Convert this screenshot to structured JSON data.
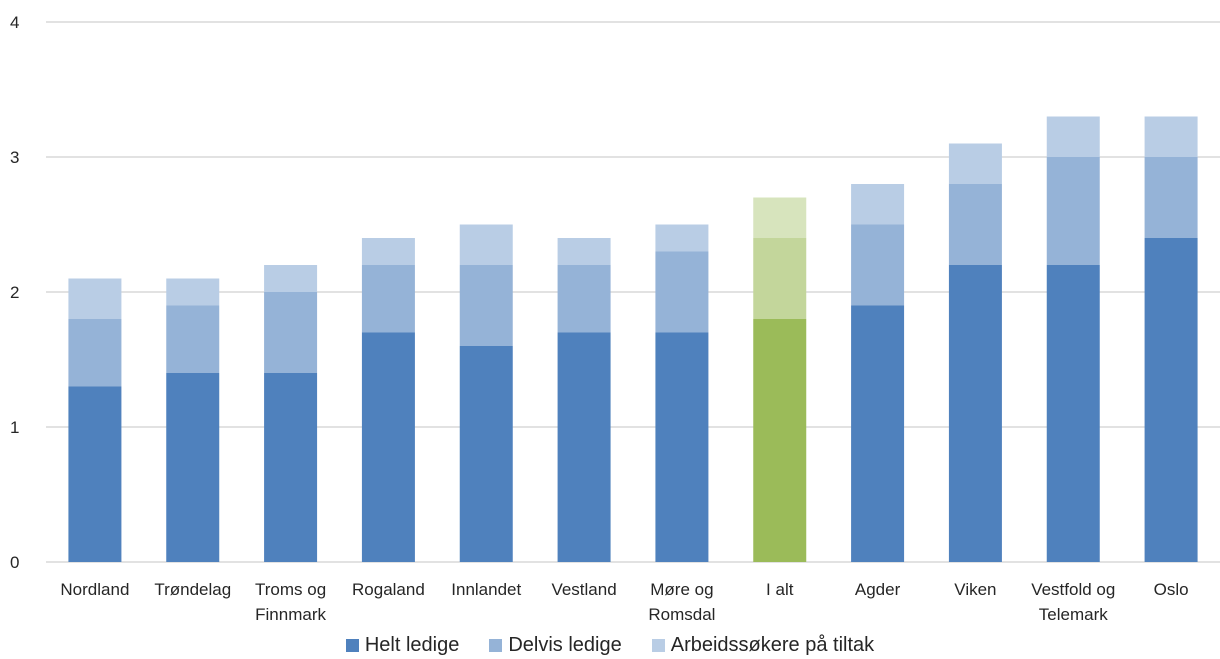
{
  "chart_data": {
    "type": "bar",
    "stacked": true,
    "categories": [
      [
        "Nordland"
      ],
      [
        "Trøndelag"
      ],
      [
        "Troms og",
        "Finnmark"
      ],
      [
        "Rogaland"
      ],
      [
        "Innlandet"
      ],
      [
        "Vestland"
      ],
      [
        "Møre og",
        "Romsdal"
      ],
      [
        "I alt"
      ],
      [
        "Agder"
      ],
      [
        "Viken"
      ],
      [
        "Vestfold og",
        "Telemark"
      ],
      [
        "Oslo"
      ]
    ],
    "series": [
      {
        "name": "Helt ledige",
        "color": "#4f81bd",
        "values": [
          1.3,
          1.4,
          1.4,
          1.7,
          1.6,
          1.7,
          1.7,
          1.8,
          1.9,
          2.2,
          2.2,
          2.4
        ]
      },
      {
        "name": "Delvis ledige",
        "color": "#95b3d7",
        "values": [
          0.5,
          0.5,
          0.6,
          0.5,
          0.6,
          0.5,
          0.6,
          0.6,
          0.6,
          0.6,
          0.8,
          0.6
        ]
      },
      {
        "name": "Arbeidssøkere på tiltak",
        "color": "#b9cde5",
        "values": [
          0.3,
          0.2,
          0.2,
          0.2,
          0.3,
          0.2,
          0.2,
          0.3,
          0.3,
          0.3,
          0.3,
          0.3
        ]
      }
    ],
    "highlight": {
      "category_index": 7,
      "colors": [
        "#9bbb59",
        "#c3d69b",
        "#d7e4bd"
      ]
    },
    "yticks": [
      0,
      1,
      2,
      3,
      4
    ],
    "ylim": [
      0,
      4
    ],
    "grid": true,
    "legend_position": "bottom",
    "title": "",
    "xlabel": "",
    "ylabel": ""
  }
}
